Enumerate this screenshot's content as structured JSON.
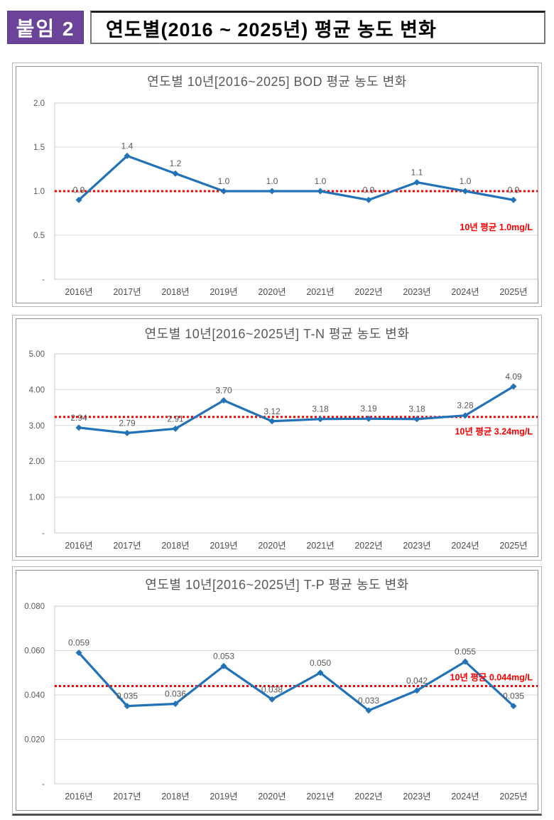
{
  "header": {
    "badge": "붙임 2",
    "title": "연도별(2016 ~ 2025년) 평균 농도 변화"
  },
  "colors": {
    "accent_purple": "#6b4399",
    "line_blue": "#2272b8",
    "average_red": "#ff0000",
    "gridline": "#d9d9d9",
    "axis_text": "#595959"
  },
  "chart_data": [
    {
      "type": "line",
      "title": "연도별 10년[2016~2025] BOD 평균 농도 변화",
      "categories": [
        "2016년",
        "2017년",
        "2018년",
        "2019년",
        "2020년",
        "2021년",
        "2022년",
        "2023년",
        "2024년",
        "2025년"
      ],
      "values": [
        0.9,
        1.4,
        1.2,
        1.0,
        1.0,
        1.0,
        0.9,
        1.1,
        1.0,
        0.9
      ],
      "value_labels": [
        "0.9",
        "1.4",
        "1.2",
        "1.0",
        "1.0",
        "1.0",
        "0.9",
        "1.1",
        "1.0",
        "0.9"
      ],
      "ylim": [
        0,
        2.0
      ],
      "yticks": [
        "2.0",
        "1.5",
        "1.0",
        "0.5",
        "-"
      ],
      "grid": true,
      "legend": false,
      "average_line": {
        "value": 1.0,
        "label": "10년 평균 1.0mg/L"
      }
    },
    {
      "type": "line",
      "title": "연도별 10년[2016~2025년] T-N 평균 농도 변화",
      "categories": [
        "2016년",
        "2017년",
        "2018년",
        "2019년",
        "2020년",
        "2021년",
        "2022년",
        "2023년",
        "2024년",
        "2025년"
      ],
      "values": [
        2.94,
        2.79,
        2.91,
        3.7,
        3.12,
        3.18,
        3.19,
        3.18,
        3.28,
        4.09
      ],
      "value_labels": [
        "2.94",
        "2.79",
        "2.91",
        "3.70",
        "3.12",
        "3.18",
        "3.19",
        "3.18",
        "3.28",
        "4.09"
      ],
      "ylim": [
        0,
        5.0
      ],
      "yticks": [
        "5.00",
        "4.00",
        "3.00",
        "2.00",
        "1.00",
        "-"
      ],
      "grid": true,
      "legend": false,
      "average_line": {
        "value": 3.24,
        "label": "10년 평균 3.24mg/L"
      }
    },
    {
      "type": "line",
      "title": "연도별 10년[2016~2025년] T-P 평균 농도 변화",
      "categories": [
        "2016년",
        "2017년",
        "2018년",
        "2019년",
        "2020년",
        "2021년",
        "2022년",
        "2023년",
        "2024년",
        "2025년"
      ],
      "values": [
        0.059,
        0.035,
        0.036,
        0.053,
        0.038,
        0.05,
        0.033,
        0.042,
        0.055,
        0.035
      ],
      "value_labels": [
        "0.059",
        "0.035",
        "0.036",
        "0.053",
        "0.038",
        "0.050",
        "0.033",
        "0.042",
        "0.055",
        "0.035"
      ],
      "ylim": [
        0,
        0.08
      ],
      "yticks": [
        "0.080",
        "0.060",
        "0.040",
        "0.020",
        "-"
      ],
      "grid": true,
      "legend": false,
      "average_line": {
        "value": 0.044,
        "label": "10년 평균 0.044mg/L"
      }
    }
  ]
}
